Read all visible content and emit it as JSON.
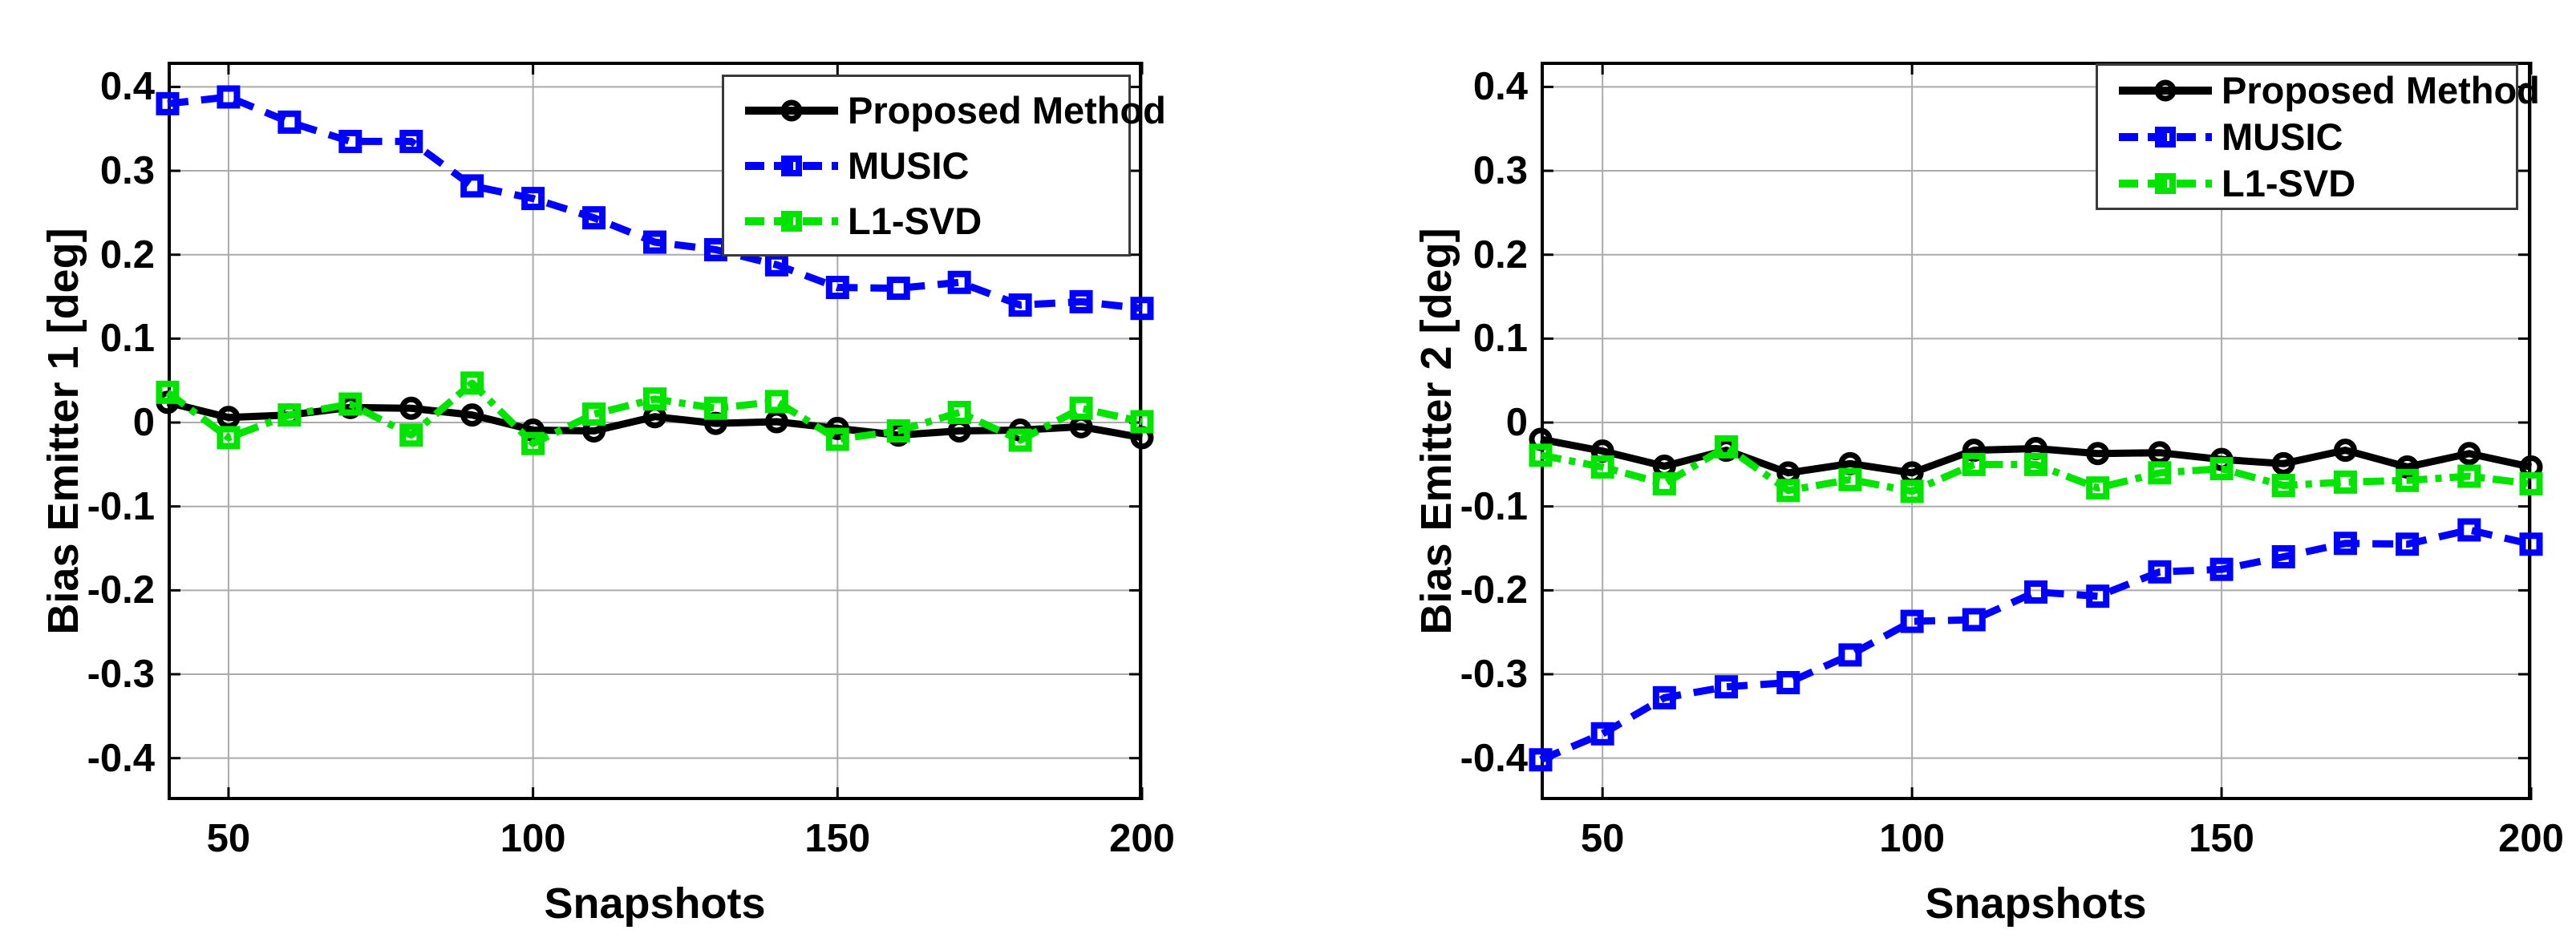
{
  "figure": {
    "background": "#ffffff",
    "grid_color": "#ababab",
    "axis_color": "#000000"
  },
  "chart_data": [
    {
      "type": "line",
      "title": "",
      "xlabel": "Snapshots",
      "ylabel": "Bias Emitter 1 [deg]",
      "x": [
        40,
        50,
        60,
        70,
        80,
        90,
        100,
        110,
        120,
        130,
        140,
        150,
        160,
        170,
        180,
        190,
        200
      ],
      "xticks": [
        50,
        100,
        150,
        200
      ],
      "yticks": [
        0.4,
        0.3,
        0.2,
        0.1,
        0,
        -0.1,
        -0.2,
        -0.3,
        -0.4
      ],
      "xlim": [
        40,
        200
      ],
      "ylim": [
        -0.45,
        0.43
      ],
      "grid": true,
      "legend_position": "top-right",
      "series": [
        {
          "name": "Proposed Method",
          "color": "#000000",
          "line_style": "solid",
          "marker": "circle",
          "values": [
            0.024,
            0.006,
            0.009,
            0.018,
            0.017,
            0.009,
            -0.009,
            -0.01,
            0.007,
            -0.001,
            0.001,
            -0.007,
            -0.015,
            -0.01,
            -0.009,
            -0.005,
            -0.018
          ]
        },
        {
          "name": "MUSIC",
          "color": "#0000ff",
          "line_style": "dashed",
          "marker": "square",
          "values": [
            0.38,
            0.388,
            0.358,
            0.335,
            0.335,
            0.282,
            0.267,
            0.244,
            0.215,
            0.206,
            0.188,
            0.161,
            0.16,
            0.167,
            0.14,
            0.144,
            0.136
          ]
        },
        {
          "name": "L1-SVD",
          "color": "#00e400",
          "line_style": "dash-dot",
          "marker": "square",
          "values": [
            0.036,
            -0.018,
            0.009,
            0.022,
            -0.015,
            0.047,
            -0.025,
            0.01,
            0.028,
            0.017,
            0.025,
            -0.02,
            -0.01,
            0.012,
            -0.021,
            0.017,
            0.001
          ]
        }
      ]
    },
    {
      "type": "line",
      "title": "",
      "xlabel": "Snapshots",
      "ylabel": "Bias Emitter 2 [deg]",
      "x": [
        40,
        50,
        60,
        70,
        80,
        90,
        100,
        110,
        120,
        130,
        140,
        150,
        160,
        170,
        180,
        190,
        200
      ],
      "xticks": [
        50,
        100,
        150,
        200
      ],
      "yticks": [
        0.4,
        0.3,
        0.2,
        0.1,
        0,
        -0.1,
        -0.2,
        -0.3,
        -0.4
      ],
      "xlim": [
        40,
        200
      ],
      "ylim": [
        -0.45,
        0.43
      ],
      "grid": true,
      "legend_position": "top-right",
      "series": [
        {
          "name": "Proposed Method",
          "color": "#000000",
          "line_style": "solid",
          "marker": "circle",
          "values": [
            -0.02,
            -0.034,
            -0.052,
            -0.033,
            -0.06,
            -0.049,
            -0.06,
            -0.033,
            -0.031,
            -0.037,
            -0.036,
            -0.044,
            -0.049,
            -0.033,
            -0.053,
            -0.037,
            -0.053
          ]
        },
        {
          "name": "MUSIC",
          "color": "#0000ff",
          "line_style": "dashed",
          "marker": "square",
          "values": [
            -0.402,
            -0.371,
            -0.328,
            -0.315,
            -0.31,
            -0.277,
            -0.237,
            -0.235,
            -0.202,
            -0.207,
            -0.178,
            -0.175,
            -0.16,
            -0.144,
            -0.145,
            -0.128,
            -0.145
          ]
        },
        {
          "name": "L1-SVD",
          "color": "#00e400",
          "line_style": "dash-dot",
          "marker": "square",
          "values": [
            -0.039,
            -0.053,
            -0.073,
            -0.029,
            -0.081,
            -0.068,
            -0.082,
            -0.05,
            -0.05,
            -0.078,
            -0.06,
            -0.055,
            -0.075,
            -0.071,
            -0.069,
            -0.064,
            -0.073
          ]
        }
      ]
    }
  ]
}
